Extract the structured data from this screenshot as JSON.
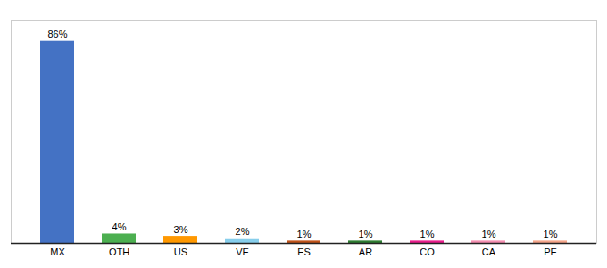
{
  "chart_data": {
    "type": "bar",
    "categories": [
      "MX",
      "OTH",
      "US",
      "VE",
      "ES",
      "AR",
      "CO",
      "CA",
      "PE"
    ],
    "values": [
      86,
      4,
      3,
      2,
      1,
      1,
      1,
      1,
      1
    ],
    "value_labels": [
      "86%",
      "4%",
      "3%",
      "2%",
      "1%",
      "1%",
      "1%",
      "1%",
      "1%"
    ],
    "colors": [
      "#4472c4",
      "#4caf50",
      "#ff9800",
      "#87ceeb",
      "#c0531a",
      "#2e7d32",
      "#e91e8c",
      "#f48fb1",
      "#f4a58a"
    ],
    "ylim": [
      0,
      95
    ],
    "grid": false,
    "data_labels": true,
    "tick_labels": "x"
  }
}
